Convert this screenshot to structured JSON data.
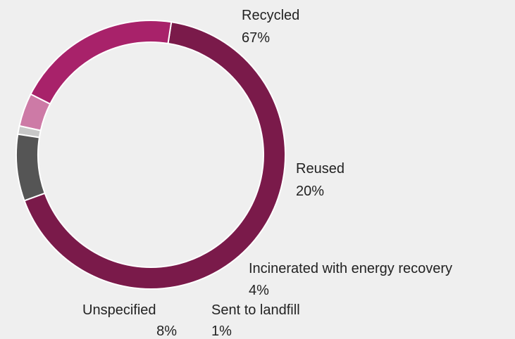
{
  "chart_data": {
    "type": "pie",
    "variant": "donut",
    "title": "",
    "slices": [
      {
        "label": "Recycled",
        "value": 67,
        "value_label": "67%",
        "color": "#7a1a4a"
      },
      {
        "label": "Reused",
        "value": 20,
        "value_label": "20%",
        "color": "#a8226a"
      },
      {
        "label": "Incinerated with energy recovery",
        "value": 4,
        "value_label": "4%",
        "color": "#cd7aa6"
      },
      {
        "label": "Sent to landfill",
        "value": 1,
        "value_label": "1%",
        "color": "#c8c8c8"
      },
      {
        "label": "Unspecified",
        "value": 8,
        "value_label": "8%",
        "color": "#555555"
      }
    ],
    "legend": "none"
  },
  "colors": {
    "background": "#efefef",
    "text": "#222222"
  }
}
